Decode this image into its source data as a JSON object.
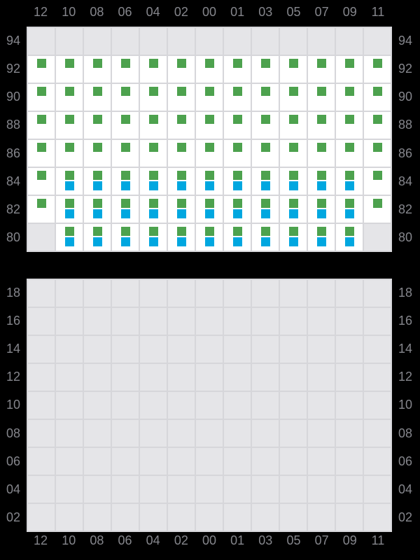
{
  "colors": {
    "background": "#000000",
    "cell_empty": "#e5e5e8",
    "cell_active": "#ffffff",
    "grid_line": "#d6d6da",
    "label_text": "#85868c",
    "green_mark": "#4da24e",
    "blue_mark": "#00a7e0"
  },
  "chart_data": {
    "type": "heatmap",
    "title": "",
    "xlabel": "",
    "ylabel": "",
    "grid": true,
    "legend_position": "none",
    "columns": [
      "12",
      "10",
      "08",
      "06",
      "04",
      "02",
      "00",
      "01",
      "03",
      "05",
      "07",
      "09",
      "11"
    ],
    "mark_legend": {
      "g": "green-square-marker",
      "b": "blue-square-marker",
      "": "empty-cell"
    },
    "grids": [
      {
        "name": "top",
        "row_labels": [
          "94",
          "92",
          "90",
          "88",
          "86",
          "84",
          "82",
          "80"
        ],
        "cells": [
          [
            "",
            "",
            "",
            "",
            "",
            "",
            "",
            "",
            "",
            "",
            "",
            "",
            ""
          ],
          [
            "g",
            "g",
            "g",
            "g",
            "g",
            "g",
            "g",
            "g",
            "g",
            "g",
            "g",
            "g",
            "g"
          ],
          [
            "g",
            "g",
            "g",
            "g",
            "g",
            "g",
            "g",
            "g",
            "g",
            "g",
            "g",
            "g",
            "g"
          ],
          [
            "g",
            "g",
            "g",
            "g",
            "g",
            "g",
            "g",
            "g",
            "g",
            "g",
            "g",
            "g",
            "g"
          ],
          [
            "g",
            "g",
            "g",
            "g",
            "g",
            "g",
            "g",
            "g",
            "g",
            "g",
            "g",
            "g",
            "g"
          ],
          [
            "g",
            "gb",
            "gb",
            "gb",
            "gb",
            "gb",
            "gb",
            "gb",
            "gb",
            "gb",
            "gb",
            "gb",
            "g"
          ],
          [
            "g",
            "gb",
            "gb",
            "gb",
            "gb",
            "gb",
            "gb",
            "gb",
            "gb",
            "gb",
            "gb",
            "gb",
            "g"
          ],
          [
            "",
            "gb",
            "gb",
            "gb",
            "gb",
            "gb",
            "gb",
            "gb",
            "gb",
            "gb",
            "gb",
            "gb",
            ""
          ]
        ]
      },
      {
        "name": "bottom",
        "row_labels": [
          "18",
          "16",
          "14",
          "12",
          "10",
          "08",
          "06",
          "04",
          "02"
        ],
        "cells": [
          [
            "",
            "",
            "",
            "",
            "",
            "",
            "",
            "",
            "",
            "",
            "",
            "",
            ""
          ],
          [
            "",
            "",
            "",
            "",
            "",
            "",
            "",
            "",
            "",
            "",
            "",
            "",
            ""
          ],
          [
            "",
            "",
            "",
            "",
            "",
            "",
            "",
            "",
            "",
            "",
            "",
            "",
            ""
          ],
          [
            "",
            "",
            "",
            "",
            "",
            "",
            "",
            "",
            "",
            "",
            "",
            "",
            ""
          ],
          [
            "",
            "",
            "",
            "",
            "",
            "",
            "",
            "",
            "",
            "",
            "",
            "",
            ""
          ],
          [
            "",
            "",
            "",
            "",
            "",
            "",
            "",
            "",
            "",
            "",
            "",
            "",
            ""
          ],
          [
            "",
            "",
            "",
            "",
            "",
            "",
            "",
            "",
            "",
            "",
            "",
            "",
            ""
          ],
          [
            "",
            "",
            "",
            "",
            "",
            "",
            "",
            "",
            "",
            "",
            "",
            "",
            ""
          ],
          [
            "",
            "",
            "",
            "",
            "",
            "",
            "",
            "",
            "",
            "",
            "",
            "",
            ""
          ]
        ]
      }
    ]
  }
}
